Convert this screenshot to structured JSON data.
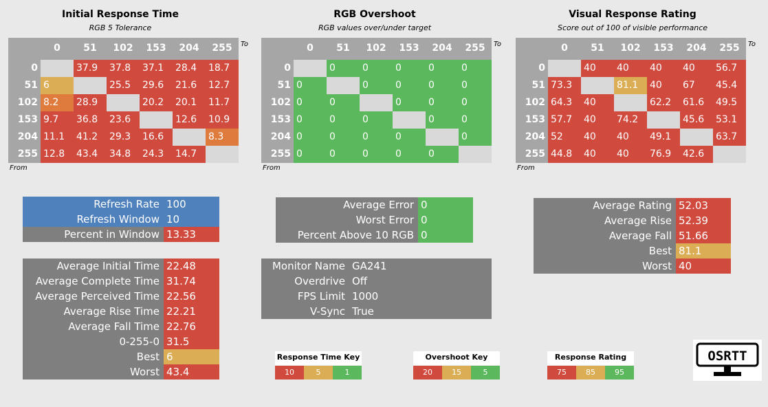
{
  "chart_data": [
    {
      "type": "heatmap",
      "title": "Initial Response Time",
      "subtitle": "RGB 5 Tolerance",
      "xlabel": "To",
      "ylabel": "From",
      "x": [
        "0",
        "51",
        "102",
        "153",
        "204",
        "255"
      ],
      "y": [
        "0",
        "51",
        "102",
        "153",
        "204",
        "255"
      ],
      "values": [
        [
          null,
          "37.9",
          "37.8",
          "37.1",
          "28.4",
          "18.7"
        ],
        [
          "6",
          null,
          "25.5",
          "29.6",
          "21.6",
          "12.7"
        ],
        [
          "8.2",
          "28.9",
          null,
          "20.2",
          "20.1",
          "11.7"
        ],
        [
          "9.7",
          "36.8",
          "23.6",
          null,
          "12.6",
          "10.9"
        ],
        [
          "11.1",
          "41.2",
          "29.3",
          "16.6",
          null,
          "8.3"
        ],
        [
          "12.8",
          "43.4",
          "34.8",
          "24.3",
          "14.7",
          null
        ]
      ],
      "colors": [
        [
          "light",
          "red",
          "red",
          "red",
          "red",
          "red"
        ],
        [
          "yellow",
          "light",
          "red",
          "red",
          "red",
          "red"
        ],
        [
          "orange",
          "red",
          "light",
          "red",
          "red",
          "red"
        ],
        [
          "red",
          "red",
          "red",
          "light",
          "red",
          "red"
        ],
        [
          "red",
          "red",
          "red",
          "red",
          "light",
          "orange"
        ],
        [
          "red",
          "red",
          "red",
          "red",
          "red",
          "light"
        ]
      ]
    },
    {
      "type": "heatmap",
      "title": "RGB Overshoot",
      "subtitle": "RGB values over/under target",
      "xlabel": "To",
      "ylabel": "From",
      "x": [
        "0",
        "51",
        "102",
        "153",
        "204",
        "255"
      ],
      "y": [
        "0",
        "51",
        "102",
        "153",
        "204",
        "255"
      ],
      "values": [
        [
          null,
          "0",
          "0",
          "0",
          "0",
          "0"
        ],
        [
          "0",
          null,
          "0",
          "0",
          "0",
          "0"
        ],
        [
          "0",
          "0",
          null,
          "0",
          "0",
          "0"
        ],
        [
          "0",
          "0",
          "0",
          null,
          "0",
          "0"
        ],
        [
          "0",
          "0",
          "0",
          "0",
          null,
          "0"
        ],
        [
          "0",
          "0",
          "0",
          "0",
          "0",
          null
        ]
      ],
      "colors": [
        [
          "light",
          "green",
          "green",
          "green",
          "green",
          "green"
        ],
        [
          "green",
          "light",
          "green",
          "green",
          "green",
          "green"
        ],
        [
          "green",
          "green",
          "light",
          "green",
          "green",
          "green"
        ],
        [
          "green",
          "green",
          "green",
          "light",
          "green",
          "green"
        ],
        [
          "green",
          "green",
          "green",
          "green",
          "light",
          "green"
        ],
        [
          "green",
          "green",
          "green",
          "green",
          "green",
          "light"
        ]
      ]
    },
    {
      "type": "heatmap",
      "title": "Visual Response Rating",
      "subtitle": "Score out of 100 of visible performance",
      "xlabel": "To",
      "ylabel": "From",
      "x": [
        "0",
        "51",
        "102",
        "153",
        "204",
        "255"
      ],
      "y": [
        "0",
        "51",
        "102",
        "153",
        "204",
        "255"
      ],
      "values": [
        [
          null,
          "40",
          "40",
          "40",
          "40",
          "56.7"
        ],
        [
          "73.3",
          null,
          "81.1",
          "40",
          "67",
          "45.4"
        ],
        [
          "64.3",
          "40",
          null,
          "62.2",
          "61.6",
          "49.5"
        ],
        [
          "57.7",
          "40",
          "74.2",
          null,
          "45.6",
          "53.1"
        ],
        [
          "52",
          "40",
          "40",
          "49.1",
          null,
          "63.7"
        ],
        [
          "44.8",
          "40",
          "40",
          "76.9",
          "42.6",
          null
        ]
      ],
      "colors": [
        [
          "light",
          "red",
          "red",
          "red",
          "red",
          "red"
        ],
        [
          "red",
          "light",
          "yellow",
          "red",
          "red",
          "red"
        ],
        [
          "red",
          "red",
          "light",
          "red",
          "red",
          "red"
        ],
        [
          "red",
          "red",
          "red",
          "light",
          "red",
          "red"
        ],
        [
          "red",
          "red",
          "red",
          "red",
          "light",
          "red"
        ],
        [
          "red",
          "red",
          "red",
          "red",
          "red",
          "light"
        ]
      ]
    }
  ],
  "panels": {
    "refresh": [
      {
        "label": "Refresh Rate",
        "value": "100",
        "lc": "blue",
        "vc": "blue"
      },
      {
        "label": "Refresh Window",
        "value": "10",
        "lc": "blue",
        "vc": "blue"
      },
      {
        "label": "Percent in Window",
        "value": "13.33",
        "lc": "grey",
        "vc": "red"
      }
    ],
    "error": [
      {
        "label": "Average Error",
        "value": "0",
        "lc": "grey",
        "vc": "green"
      },
      {
        "label": "Worst Error",
        "value": "0",
        "lc": "grey",
        "vc": "green"
      },
      {
        "label": "Percent Above 10 RGB",
        "value": "0",
        "lc": "grey",
        "vc": "green"
      }
    ],
    "rating": [
      {
        "label": "Average Rating",
        "value": "52.03",
        "lc": "grey",
        "vc": "red"
      },
      {
        "label": "Average Rise",
        "value": "52.39",
        "lc": "grey",
        "vc": "red"
      },
      {
        "label": "Average Fall",
        "value": "51.66",
        "lc": "grey",
        "vc": "red"
      },
      {
        "label": "Best",
        "value": "81.1",
        "lc": "grey",
        "vc": "yellow"
      },
      {
        "label": "Worst",
        "value": "40",
        "lc": "grey",
        "vc": "red"
      }
    ],
    "times": [
      {
        "label": "Average Initial Time",
        "value": "22.48",
        "lc": "grey",
        "vc": "red"
      },
      {
        "label": "Average Complete Time",
        "value": "31.74",
        "lc": "grey",
        "vc": "red"
      },
      {
        "label": "Average Perceived Time",
        "value": "22.56",
        "lc": "grey",
        "vc": "red"
      },
      {
        "label": "Average Rise Time",
        "value": "22.21",
        "lc": "grey",
        "vc": "red"
      },
      {
        "label": "Average Fall Time",
        "value": "22.76",
        "lc": "grey",
        "vc": "red"
      },
      {
        "label": "0-255-0",
        "value": "31.5",
        "lc": "grey",
        "vc": "red"
      },
      {
        "label": "Best",
        "value": "6",
        "lc": "grey",
        "vc": "yellow"
      },
      {
        "label": "Worst",
        "value": "43.4",
        "lc": "grey",
        "vc": "red"
      }
    ],
    "monitor": [
      {
        "label": "Monitor Name",
        "value": "GA241",
        "lc": "grey",
        "vc": "grey"
      },
      {
        "label": "Overdrive",
        "value": "Off",
        "lc": "grey",
        "vc": "grey"
      },
      {
        "label": "FPS Limit",
        "value": "1000",
        "lc": "grey",
        "vc": "grey"
      },
      {
        "label": "V-Sync",
        "value": "True",
        "lc": "grey",
        "vc": "grey"
      }
    ]
  },
  "keys": [
    {
      "title": "Response Time Key",
      "cells": [
        {
          "v": "10",
          "c": "red"
        },
        {
          "v": "5",
          "c": "yellow"
        },
        {
          "v": "1",
          "c": "green"
        }
      ]
    },
    {
      "title": "Overshoot Key",
      "cells": [
        {
          "v": "20",
          "c": "red"
        },
        {
          "v": "15",
          "c": "yellow"
        },
        {
          "v": "5",
          "c": "green"
        }
      ]
    },
    {
      "title": "Response Rating Key",
      "cells": [
        {
          "v": "75",
          "c": "red"
        },
        {
          "v": "85",
          "c": "yellow"
        },
        {
          "v": "95",
          "c": "green"
        }
      ]
    }
  ],
  "logo": {
    "text": "OSRTT"
  },
  "colors": {
    "red": "#d04a3e",
    "yellow": "#dbae56",
    "green": "#5cb85c",
    "orange": "#e07b3e",
    "blue": "#4f81bd",
    "grey": "#7f7f7f",
    "light": "#d9d9d9",
    "header": "#a6a6a6"
  }
}
